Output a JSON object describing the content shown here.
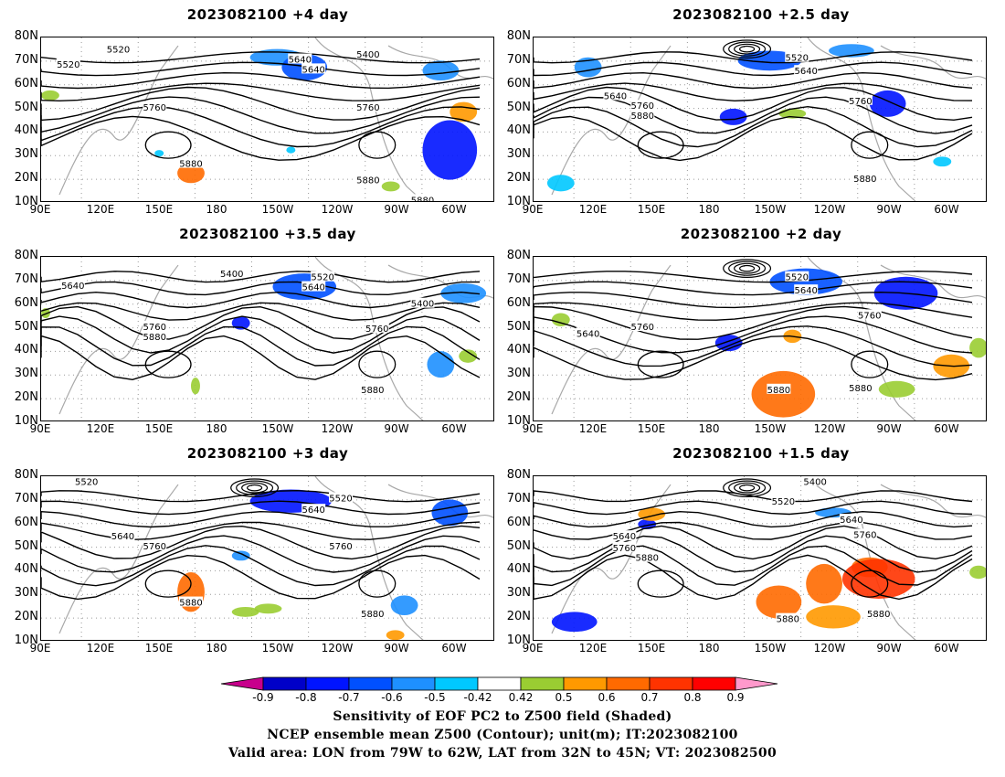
{
  "panels": [
    {
      "title": "2023082100  +4 day",
      "contour_labels": [
        "5520",
        "5640",
        "5520",
        "5640",
        "5400",
        "5760",
        "5760",
        "5880",
        "5880",
        "5880"
      ]
    },
    {
      "title": "2023082100  +2.5 day",
      "contour_labels": [
        "5520",
        "5640",
        "5640",
        "5760",
        "5880",
        "5760",
        "5880"
      ]
    },
    {
      "title": "2023082100  +3.5 day",
      "contour_labels": [
        "5400",
        "5640",
        "5520",
        "5640",
        "5400",
        "5760",
        "5880",
        "5760",
        "5880"
      ]
    },
    {
      "title": "2023082100  +2 day",
      "contour_labels": [
        "5520",
        "5640",
        "5640",
        "5760",
        "5760",
        "5880",
        "5880"
      ]
    },
    {
      "title": "2023082100  +3 day",
      "contour_labels": [
        "5520",
        "5520",
        "5640",
        "5640",
        "5760",
        "5760",
        "5880",
        "5880"
      ]
    },
    {
      "title": "2023082100  +1.5 day",
      "contour_labels": [
        "5400",
        "5520",
        "5640",
        "5640",
        "5760",
        "5760",
        "5880",
        "5880",
        "5880"
      ]
    }
  ],
  "y_axis_labels": [
    "80N",
    "70N",
    "60N",
    "50N",
    "40N",
    "30N",
    "20N",
    "10N"
  ],
  "x_axis_labels": [
    "90E",
    "120E",
    "150E",
    "180",
    "150W",
    "120W",
    "90W",
    "60W"
  ],
  "colorbar": {
    "ticks": [
      "-0.9",
      "-0.8",
      "-0.7",
      "-0.6",
      "-0.5",
      "-0.42",
      "0.42",
      "0.5",
      "0.6",
      "0.7",
      "0.8",
      "0.9"
    ],
    "colors": [
      "#c8008c",
      "#0000c8",
      "#0014ff",
      "#0050ff",
      "#1e90ff",
      "#00c8ff",
      "#ffffff",
      "#9acd32",
      "#ff9900",
      "#ff6a00",
      "#ff3300",
      "#ff0000",
      "#ff99cc"
    ]
  },
  "caption": {
    "line1": "Sensitivity of EOF PC2 to Z500 field (Shaded)",
    "line2": "NCEP ensemble mean Z500 (Contour); unit(m); IT:2023082100",
    "line3": "Valid area: LON from 79W to 62W, LAT from 32N to 45N; VT: 2023082500"
  }
}
